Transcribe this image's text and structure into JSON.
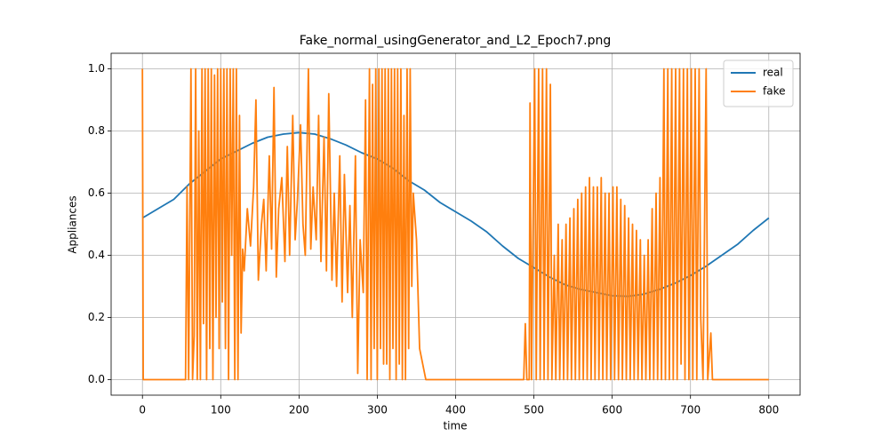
{
  "chart_data": {
    "type": "line",
    "title": "Fake_normal_usingGenerator_and_L2_Epoch7.png",
    "xlabel": "time",
    "ylabel": "Appliances",
    "xlim": [
      -40,
      840
    ],
    "ylim": [
      -0.05,
      1.05
    ],
    "xticks": [
      0,
      100,
      200,
      300,
      400,
      500,
      600,
      700,
      800
    ],
    "yticks": [
      {
        "value": 0,
        "label": "0.0"
      },
      {
        "value": 0.2,
        "label": "0.2"
      },
      {
        "value": 0.4,
        "label": "0.4"
      },
      {
        "value": 0.6,
        "label": "0.6"
      },
      {
        "value": 0.8,
        "label": "0.8"
      },
      {
        "value": 1,
        "label": "1.0"
      }
    ],
    "grid": true,
    "legend": "upper right",
    "series": [
      {
        "name": "real",
        "color": "#1f77b4",
        "x": [
          0,
          20,
          40,
          60,
          80,
          100,
          120,
          140,
          160,
          180,
          200,
          220,
          240,
          260,
          280,
          300,
          320,
          340,
          360,
          380,
          400,
          420,
          440,
          460,
          480,
          500,
          520,
          540,
          560,
          580,
          600,
          620,
          640,
          660,
          680,
          700,
          720,
          740,
          760,
          780,
          800
        ],
        "values": [
          0.52,
          0.55,
          0.58,
          0.63,
          0.67,
          0.71,
          0.735,
          0.76,
          0.78,
          0.79,
          0.795,
          0.79,
          0.775,
          0.755,
          0.73,
          0.71,
          0.68,
          0.64,
          0.61,
          0.57,
          0.54,
          0.51,
          0.475,
          0.43,
          0.39,
          0.36,
          0.33,
          0.305,
          0.29,
          0.28,
          0.27,
          0.268,
          0.275,
          0.29,
          0.31,
          0.335,
          0.365,
          0.4,
          0.435,
          0.48,
          0.52
        ]
      },
      {
        "name": "fake",
        "color": "#ff7f0e",
        "x": [
          0,
          1,
          3,
          55,
          57,
          59,
          62,
          64,
          66,
          68,
          70,
          72,
          74,
          76,
          78,
          80,
          82,
          84,
          86,
          88,
          90,
          92,
          94,
          96,
          98,
          100,
          102,
          104,
          106,
          108,
          110,
          112,
          114,
          116,
          118,
          120,
          122,
          124,
          126,
          128,
          130,
          134,
          138,
          142,
          145,
          148,
          152,
          155,
          158,
          162,
          165,
          168,
          171,
          174,
          178,
          182,
          185,
          188,
          192,
          195,
          198,
          202,
          205,
          208,
          212,
          215,
          218,
          222,
          225,
          228,
          232,
          235,
          238,
          242,
          245,
          248,
          252,
          255,
          258,
          262,
          265,
          268,
          272,
          275,
          278,
          282,
          285,
          287,
          290,
          292,
          294,
          296,
          298,
          300,
          302,
          304,
          306,
          308,
          310,
          312,
          314,
          316,
          318,
          320,
          322,
          324,
          326,
          328,
          330,
          332,
          334,
          336,
          338,
          340,
          342,
          344,
          346,
          350,
          354,
          358,
          362,
          487,
          489,
          491,
          494,
          495,
          497,
          501,
          503,
          506,
          508,
          511,
          513,
          516,
          518,
          521,
          523,
          526,
          528,
          531,
          533,
          536,
          538,
          541,
          543,
          546,
          548,
          551,
          553,
          556,
          558,
          561,
          563,
          566,
          568,
          571,
          573,
          576,
          578,
          581,
          583,
          586,
          588,
          591,
          593,
          596,
          598,
          601,
          603,
          606,
          608,
          611,
          613,
          616,
          618,
          621,
          623,
          626,
          628,
          631,
          633,
          636,
          638,
          641,
          643,
          646,
          648,
          651,
          653,
          656,
          658,
          661,
          663,
          666,
          668,
          671,
          673,
          676,
          678,
          681,
          683,
          686,
          688,
          691,
          693,
          696,
          698,
          701,
          703,
          706,
          708,
          711,
          713,
          716,
          720,
          722,
          726,
          728,
          800
        ],
        "values": [
          1,
          0,
          0,
          0,
          0.62,
          0,
          1,
          0,
          0.14,
          1,
          0,
          0.8,
          0,
          1,
          0.18,
          1,
          0,
          1,
          0.1,
          1,
          0,
          0.98,
          0.2,
          1,
          0.1,
          1,
          0.25,
          1,
          0.1,
          1,
          0,
          1,
          0.4,
          1,
          0,
          1,
          0,
          0.85,
          0.15,
          0.42,
          0.35,
          0.55,
          0.43,
          0.62,
          0.9,
          0.32,
          0.5,
          0.58,
          0.35,
          0.72,
          0.42,
          0.94,
          0.33,
          0.55,
          0.65,
          0.38,
          0.75,
          0.4,
          0.85,
          0.45,
          0.58,
          0.82,
          0.5,
          0.4,
          1,
          0.42,
          0.62,
          0.45,
          0.85,
          0.38,
          0.78,
          0.35,
          0.92,
          0.32,
          0.6,
          0.3,
          0.72,
          0.25,
          0.66,
          0.28,
          0.56,
          0.2,
          0.72,
          0.02,
          0.45,
          0.28,
          0.9,
          0,
          1,
          0,
          0.95,
          0.1,
          1,
          0,
          1,
          0.1,
          1,
          0.05,
          1,
          0.05,
          1,
          0,
          1,
          0.1,
          1,
          0,
          1,
          0.05,
          1,
          0,
          0.85,
          0,
          1,
          0.1,
          1,
          0.3,
          0.6,
          0.45,
          0.1,
          0.05,
          0,
          0,
          0.18,
          0,
          0,
          0.89,
          0,
          1,
          0,
          1,
          0,
          1,
          0,
          1,
          0,
          0.95,
          0,
          0.4,
          0,
          0.5,
          0,
          0.45,
          0,
          0.5,
          0,
          0.52,
          0,
          0.55,
          0,
          0.58,
          0,
          0.6,
          0,
          0.62,
          0,
          0.65,
          0,
          0.62,
          0,
          0.62,
          0,
          0.65,
          0,
          0.6,
          0,
          0.6,
          0,
          0.62,
          0,
          0.62,
          0,
          0.58,
          0,
          0.56,
          0,
          0.52,
          0,
          0.5,
          0,
          0.48,
          0,
          0.45,
          0,
          0.4,
          0,
          0.45,
          0,
          0.55,
          0,
          0.6,
          0,
          0.65,
          0,
          1,
          0,
          1,
          0,
          1,
          0,
          1,
          0,
          1,
          0.05,
          1,
          0,
          1,
          0,
          1,
          0,
          1,
          0,
          1,
          0.2,
          0,
          1,
          0,
          0.15,
          0,
          0
        ]
      }
    ]
  }
}
